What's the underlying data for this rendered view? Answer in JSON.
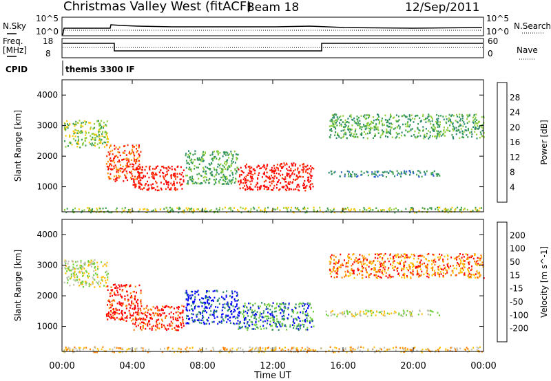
{
  "header": {
    "station": "Christmas Valley West (fitACF)",
    "beam": "Beam 18",
    "date": "12/Sep/2011"
  },
  "panels": {
    "nsky_label": "N.Sky",
    "nsearch_label": "N.Search",
    "freq_label_1": "Freq.",
    "freq_label_2": "[MHz]",
    "nave_label": "Nave",
    "cpid_label": "CPID",
    "cpid_value": "themis 3300 IF",
    "nsky_ticks": [
      "10^5",
      "10^0"
    ],
    "nsearch_ticks": [
      "10^5",
      "10^0"
    ],
    "freq_ticks": [
      "18",
      "8"
    ],
    "nave_ticks": [
      "60",
      "0"
    ]
  },
  "colors": {
    "power_scale": [
      "#0000ff",
      "#2a5fd0",
      "#2a8a6a",
      "#3aa04a",
      "#8fd03a",
      "#ffc800",
      "#ff8c00",
      "#ff3000",
      "#ff0000"
    ],
    "velocity_scale": [
      "#0000ff",
      "#2a8a6a",
      "#6fcf3a",
      "#c0c0b0",
      "#ffc000",
      "#ff8000",
      "#ff0000"
    ]
  },
  "chart_data": [
    {
      "type": "heatmap",
      "title": "Power",
      "xlabel": "",
      "ylabel": "Slant Range [km]",
      "x_ticks": [
        "00:00",
        "04:00",
        "08:00",
        "12:00",
        "16:00",
        "20:00",
        "00:00"
      ],
      "y_ticks": [
        1000,
        2000,
        3000,
        4000
      ],
      "ylim": [
        180,
        4500
      ],
      "colorbar_label": "Power [dB]",
      "colorbar_ticks": [
        "28",
        "24",
        "20",
        "16",
        "12",
        "8",
        "4"
      ],
      "regions": [
        {
          "t": [
            0.1,
            2.6
          ],
          "r": [
            2300,
            3200
          ],
          "level": 4
        },
        {
          "t": [
            2.5,
            4.5
          ],
          "r": [
            1200,
            2400
          ],
          "level": 7
        },
        {
          "t": [
            4.0,
            6.9
          ],
          "r": [
            900,
            1700
          ],
          "level": 8
        },
        {
          "t": [
            7.0,
            10.0
          ],
          "r": [
            1100,
            2200
          ],
          "level": 3
        },
        {
          "t": [
            10.0,
            14.3
          ],
          "r": [
            900,
            1800
          ],
          "level": 8
        },
        {
          "t": [
            15.0,
            21.5
          ],
          "r": [
            1350,
            1550
          ],
          "level": 2
        },
        {
          "t": [
            15.2,
            24.0
          ],
          "r": [
            2600,
            3400
          ],
          "level": 3
        },
        {
          "t": [
            0.0,
            24.0
          ],
          "r": [
            180,
            350
          ],
          "level": 4
        }
      ]
    },
    {
      "type": "heatmap",
      "title": "Velocity",
      "xlabel": "Time UT",
      "ylabel": "Slant Range [km]",
      "x_ticks": [
        "00:00",
        "04:00",
        "08:00",
        "12:00",
        "16:00",
        "20:00",
        "00:00"
      ],
      "y_ticks": [
        1000,
        2000,
        3000,
        4000
      ],
      "ylim": [
        180,
        4500
      ],
      "colorbar_label": "Velocity [m s^-1]",
      "colorbar_ticks": [
        "200",
        "100",
        "50",
        "15",
        "-15",
        "-50",
        "-100",
        "-200"
      ],
      "regions": [
        {
          "t": [
            0.1,
            2.6
          ],
          "r": [
            2300,
            3200
          ],
          "level": 3
        },
        {
          "t": [
            2.5,
            4.5
          ],
          "r": [
            1200,
            2400
          ],
          "level": 6
        },
        {
          "t": [
            4.0,
            6.9
          ],
          "r": [
            900,
            1700
          ],
          "level": 6
        },
        {
          "t": [
            7.0,
            10.0
          ],
          "r": [
            1100,
            2200
          ],
          "level": 0
        },
        {
          "t": [
            10.0,
            14.3
          ],
          "r": [
            900,
            1800
          ],
          "level": 1
        },
        {
          "t": [
            15.0,
            21.5
          ],
          "r": [
            1350,
            1550
          ],
          "level": 3
        },
        {
          "t": [
            15.2,
            24.0
          ],
          "r": [
            2600,
            3400
          ],
          "level": 5
        },
        {
          "t": [
            0.0,
            24.0
          ],
          "r": [
            180,
            350
          ],
          "level": 4
        }
      ]
    }
  ]
}
